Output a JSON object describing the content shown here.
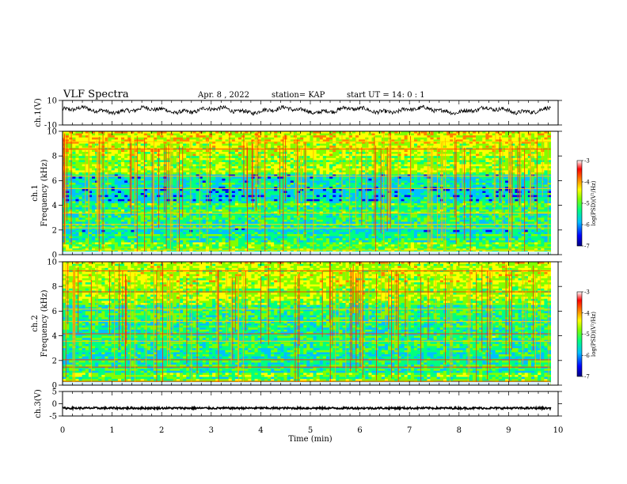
{
  "header": {
    "title": "VLF Spectra",
    "date": "Apr. 8 , 2022",
    "station": "station= KAP",
    "start": "start UT =   14: 0 : 1"
  },
  "chart_data": [
    {
      "type": "line",
      "name": "ch1-waveform",
      "ylabel": "ch.1(V)",
      "ylim": [
        -10,
        10
      ],
      "yticks": [
        "10",
        "-10"
      ],
      "xlim": [
        0,
        10
      ],
      "mean": 2,
      "amplitude": 3
    },
    {
      "type": "heatmap",
      "name": "ch1-spectrogram",
      "ylabel": "ch.1",
      "ylabel2": "Frequency (kHz)",
      "ylim": [
        0,
        10
      ],
      "yticks": [
        "0",
        "2",
        "4",
        "6",
        "8",
        "10"
      ],
      "xlim": [
        0,
        10
      ],
      "data_end_min": 9.85,
      "colorbar": {
        "label": "log(PSD)(V²/Hz)",
        "range": [
          -7,
          -3
        ],
        "ticks": [
          "-3",
          "-4",
          "-5",
          "-6",
          "-7"
        ],
        "colors": [
          "#000080",
          "#0000ff",
          "#00c0ff",
          "#00ff80",
          "#80ff00",
          "#ffff00",
          "#ff8000",
          "#ff0000",
          "#ffffff"
        ]
      }
    },
    {
      "type": "heatmap",
      "name": "ch2-spectrogram",
      "ylabel": "ch.2",
      "ylabel2": "Frequency (kHz)",
      "ylim": [
        0,
        10
      ],
      "yticks": [
        "0",
        "2",
        "4",
        "6",
        "8",
        "10"
      ],
      "xlim": [
        0,
        10
      ],
      "data_end_min": 9.85,
      "colorbar": {
        "label": "log(PSD)(V²/Hz)",
        "range": [
          -7,
          -3
        ],
        "ticks": [
          "-3",
          "-4",
          "-5",
          "-6",
          "-7"
        ],
        "colors": [
          "#000080",
          "#0000ff",
          "#00c0ff",
          "#00ff80",
          "#80ff00",
          "#ffff00",
          "#ff8000",
          "#ff0000",
          "#ffffff"
        ]
      }
    },
    {
      "type": "line",
      "name": "ch3-waveform",
      "ylabel": "ch.3(V)",
      "ylim": [
        -5,
        5
      ],
      "yticks": [
        "5",
        "0",
        "-5"
      ],
      "xlim": [
        0,
        10
      ],
      "mean": -1.8,
      "amplitude": 0.4
    }
  ],
  "xaxis": {
    "label": "Time  (min)",
    "ticks": [
      "0",
      "1",
      "2",
      "3",
      "4",
      "5",
      "6",
      "7",
      "8",
      "9",
      "10"
    ]
  }
}
